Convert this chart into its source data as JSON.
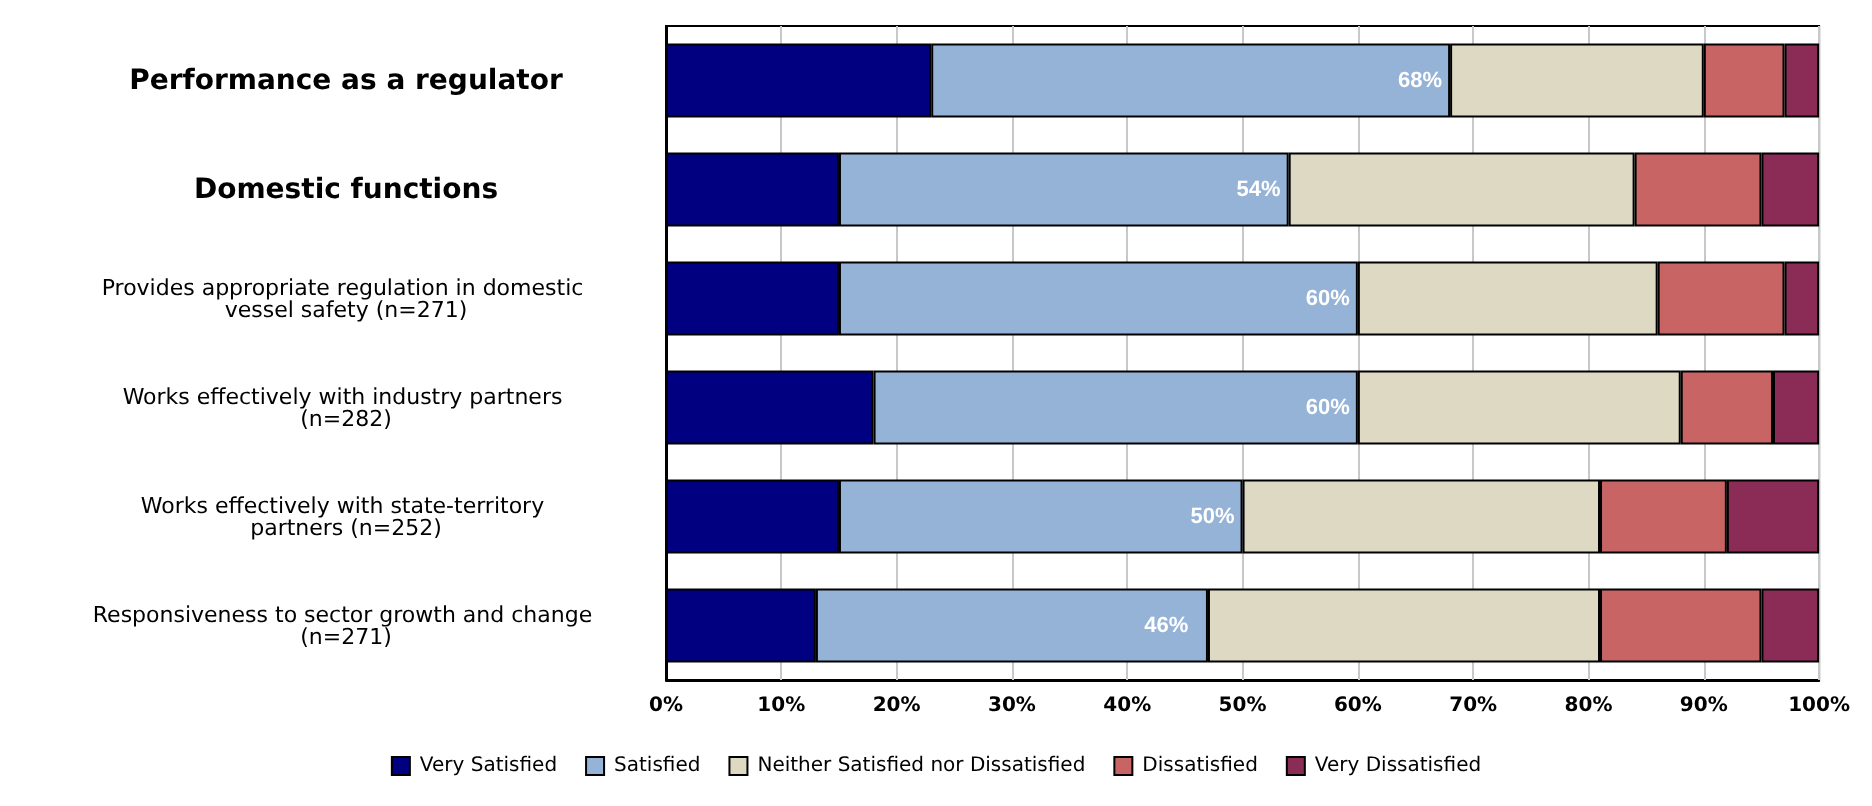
{
  "chart_data": {
    "type": "bar",
    "orientation": "horizontal",
    "stacked": true,
    "categories": [
      "Performance as a regulator",
      "Domestic functions",
      "Provides appropriate regulation in domestic vessel safety (n=271)",
      "Works effectively with industry partners (n=282)",
      "Works effectively with state-territory partners (n=252)",
      "Responsiveness to sector growth and change (n=271)"
    ],
    "series": [
      {
        "name": "Very Satisfied",
        "color": "#000080",
        "values": [
          23,
          15,
          15,
          18,
          15,
          13
        ]
      },
      {
        "name": "Satisfied",
        "color": "#95b3d7",
        "values": [
          45,
          39,
          45,
          42,
          35,
          34
        ]
      },
      {
        "name": "Neither Satisfied nor Dissatisfied",
        "color": "#ddd9c3",
        "values": [
          22,
          30,
          26,
          28,
          31,
          34
        ]
      },
      {
        "name": "Dissatisfied",
        "color": "#c86464",
        "values": [
          7,
          11,
          11,
          8,
          11,
          14
        ]
      },
      {
        "name": "Very Dissatisfied",
        "color": "#8b2c56",
        "values": [
          3,
          5,
          3,
          4,
          8,
          5
        ]
      }
    ],
    "xlim": [
      0,
      100
    ],
    "xticks": [
      {
        "value": 0,
        "label": "0%"
      },
      {
        "value": 10,
        "label": "10%"
      },
      {
        "value": 20,
        "label": "20%"
      },
      {
        "value": 30,
        "label": "30%"
      },
      {
        "value": 40,
        "label": "40%"
      },
      {
        "value": 50,
        "label": "50%"
      },
      {
        "value": 60,
        "label": "60%"
      },
      {
        "value": 70,
        "label": "70%"
      },
      {
        "value": 80,
        "label": "80%"
      },
      {
        "value": 90,
        "label": "90%"
      },
      {
        "value": 100,
        "label": "100%"
      }
    ],
    "annotations": [
      {
        "text": "68%",
        "x": 68,
        "y": "Performance as a regulator"
      },
      {
        "text": "54%",
        "x": 54,
        "y": "Domestic functions"
      },
      {
        "text": "60%",
        "x": 60,
        "y": "Provides appropriate regulation in domestic vessel safety (n=271)"
      },
      {
        "text": "60%",
        "x": 60,
        "y": "Works effectively with industry partners (n=282)"
      },
      {
        "text": "50%",
        "x": 50,
        "y": "Works effectively with state-territory partners (n=252)"
      },
      {
        "text": "46%",
        "x": 46,
        "y": "Responsiveness to sector growth and change (n=271)"
      }
    ],
    "grid": "x",
    "legend": "bottom"
  }
}
